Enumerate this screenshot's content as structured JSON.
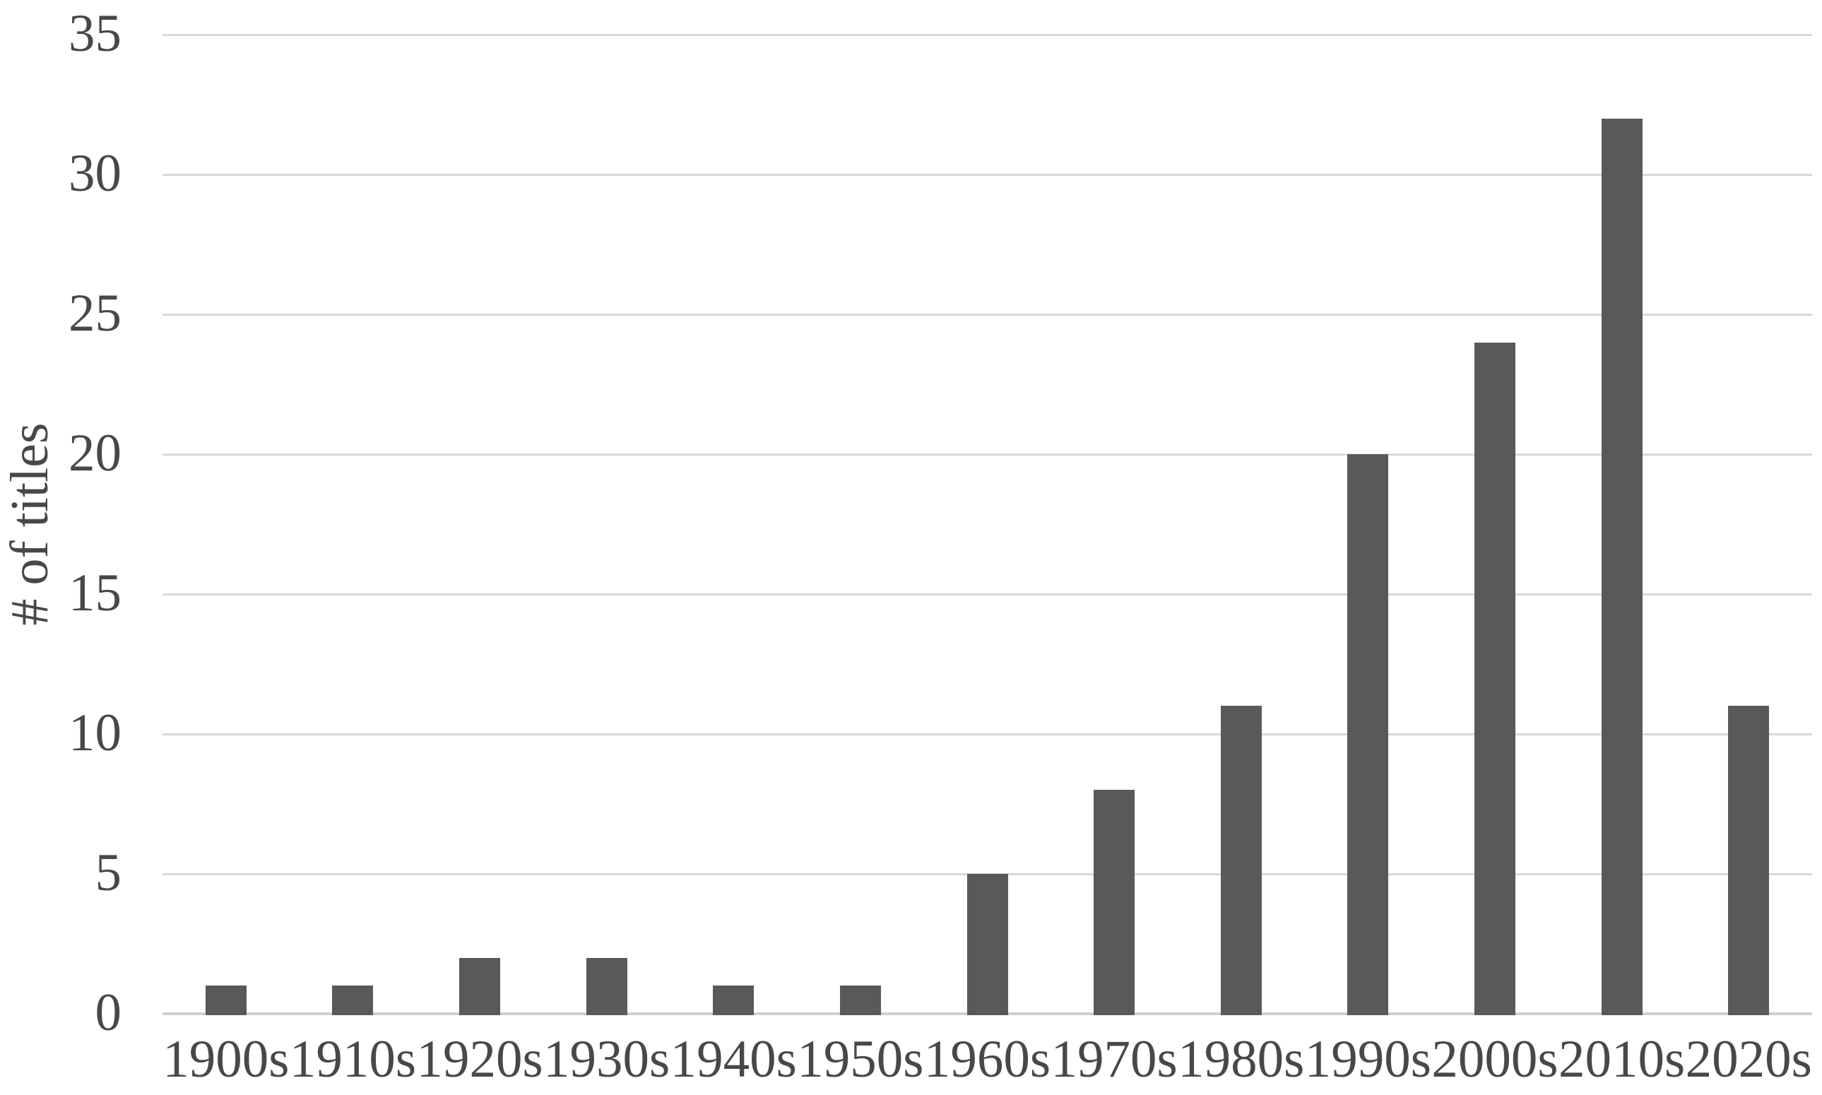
{
  "figure": {
    "background_color": "#ffffff"
  },
  "chart_data": {
    "type": "bar",
    "title": "",
    "xlabel": "",
    "ylabel": "# of titles",
    "categories": [
      "1900s",
      "1910s",
      "1920s",
      "1930s",
      "1940s",
      "1950s",
      "1960s",
      "1970s",
      "1980s",
      "1990s",
      "2000s",
      "2010s",
      "2020s"
    ],
    "values": [
      1,
      1,
      2,
      2,
      1,
      1,
      5,
      8,
      11,
      20,
      24,
      32,
      11
    ],
    "ylim": [
      0,
      35
    ],
    "yticks": [
      0,
      5,
      10,
      15,
      20,
      25,
      30,
      35
    ],
    "grid": "horizontal gridlines at every y tick",
    "legend_position": "none",
    "bar_color": "#595959",
    "gridline_color": "#d9d9d9",
    "axis_line_color": "#d0d0d0",
    "text_color": "#484848"
  }
}
